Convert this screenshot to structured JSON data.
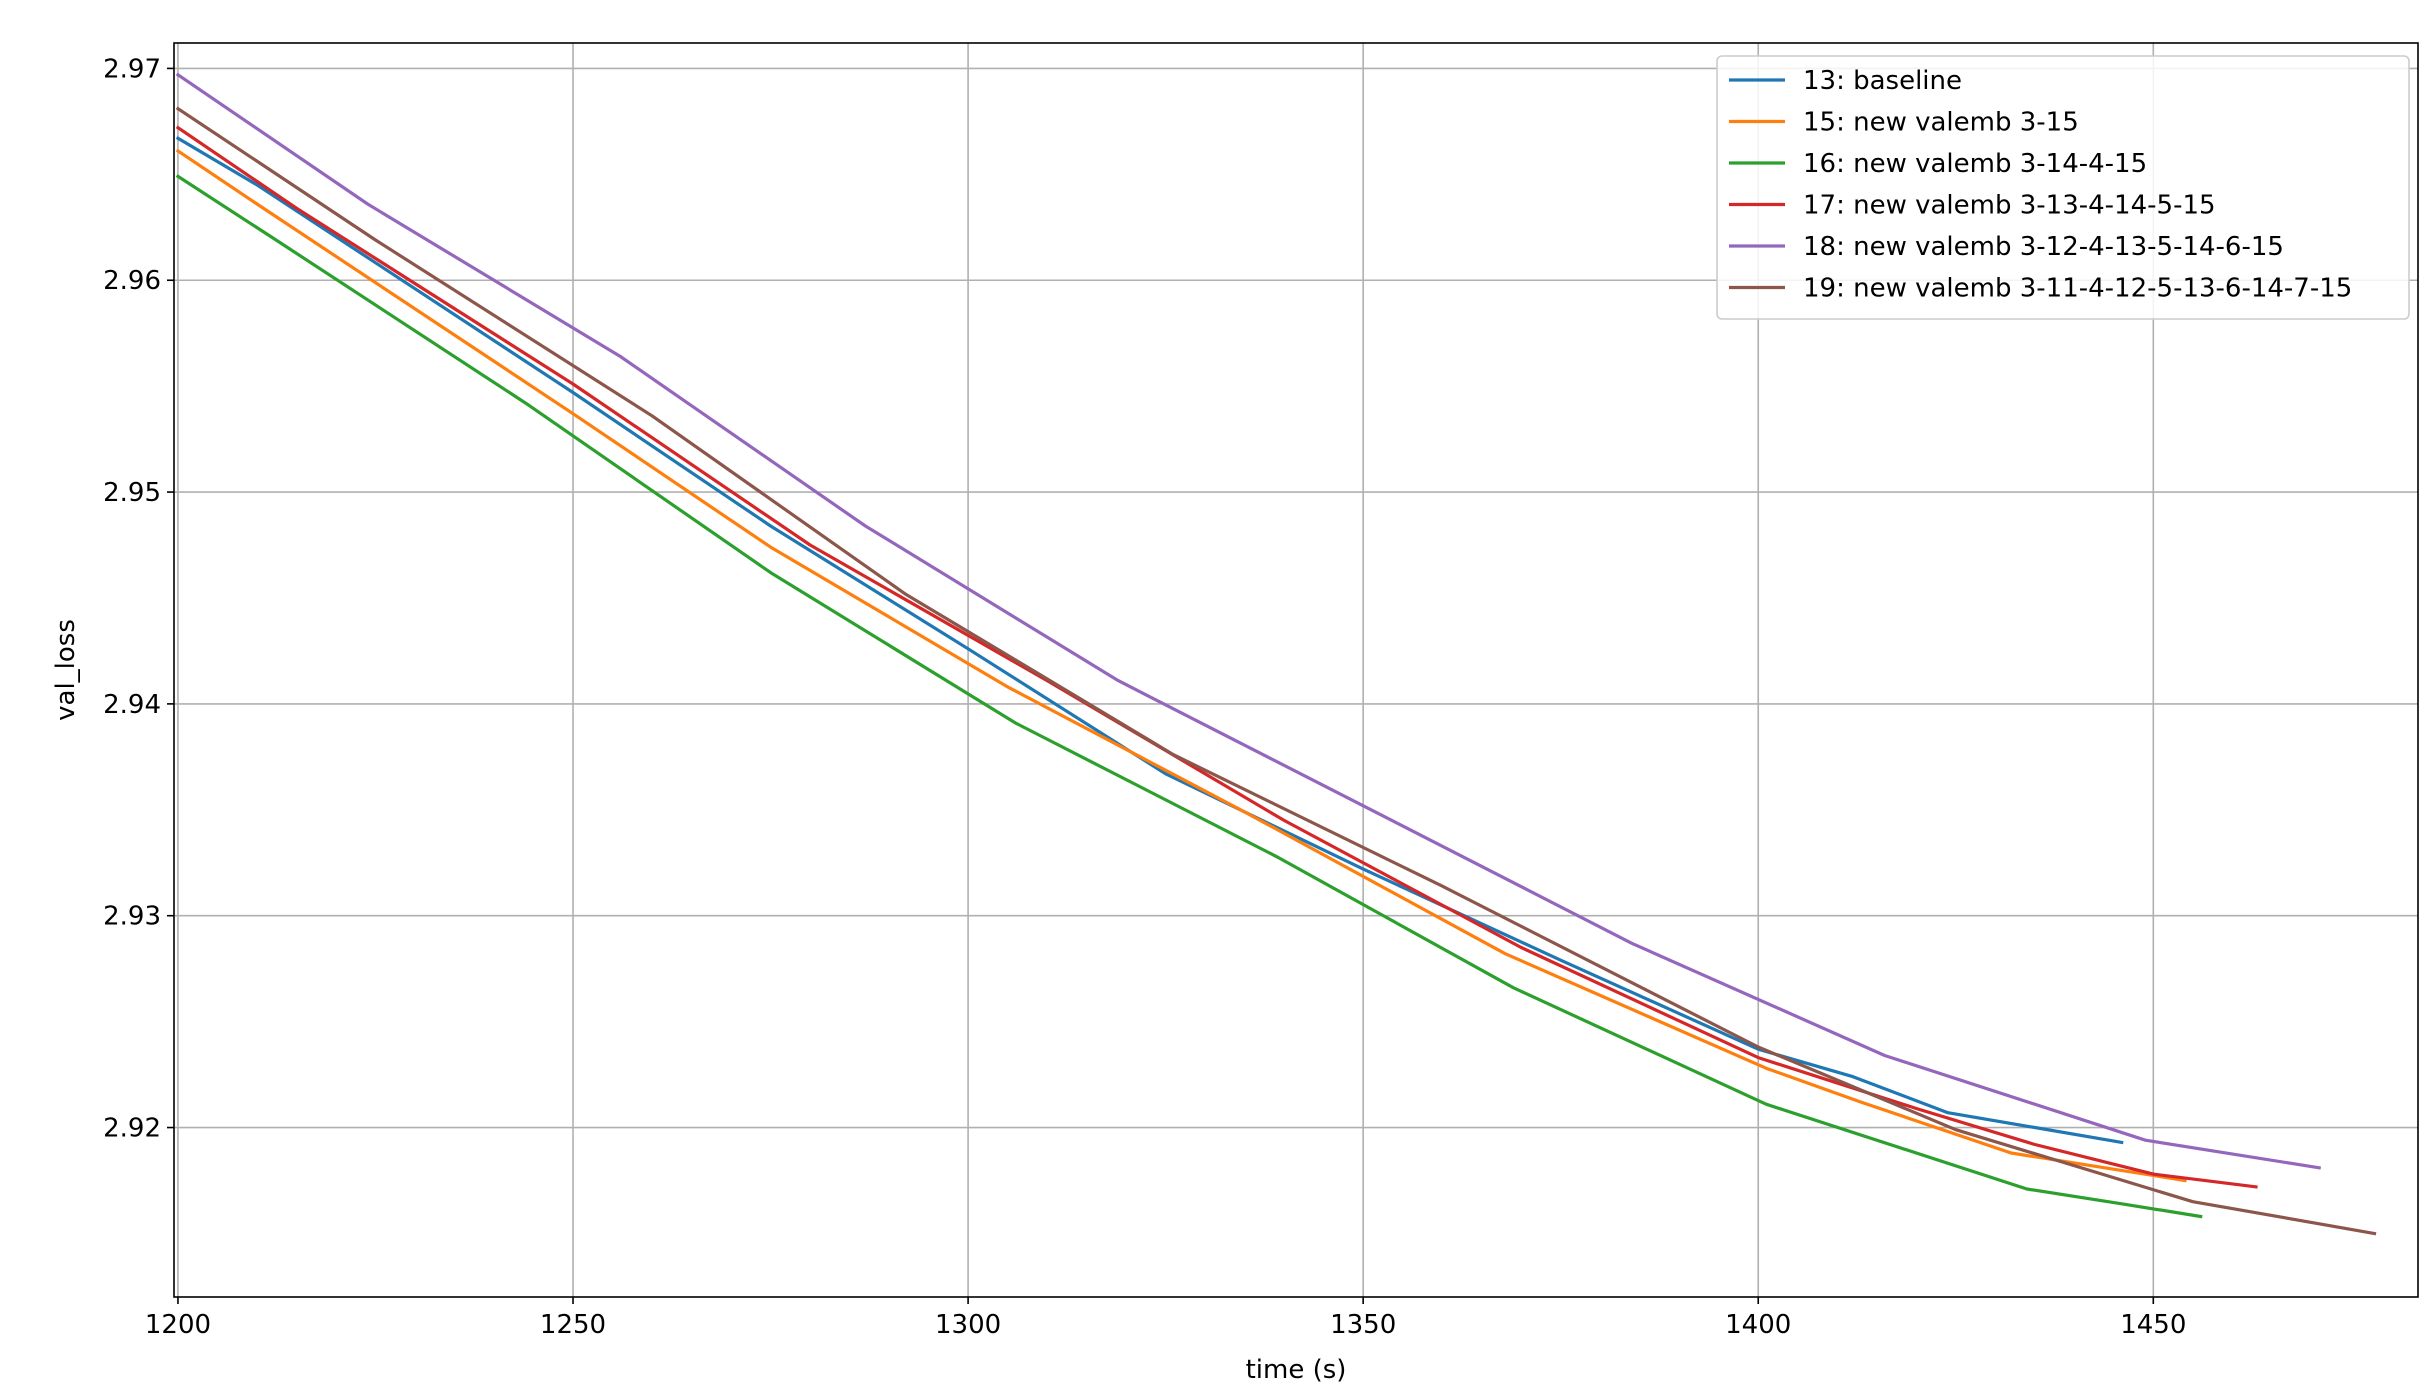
{
  "chart_data": {
    "type": "line",
    "title": "",
    "xlabel": "time (s)",
    "ylabel": "val_loss",
    "xlim": [
      1199.5,
      1483.5
    ],
    "ylim": [
      2.912,
      2.9712
    ],
    "xticks": [
      1200,
      1250,
      1300,
      1350,
      1400,
      1450
    ],
    "yticks": [
      2.92,
      2.93,
      2.94,
      2.95,
      2.96,
      2.97
    ],
    "grid": true,
    "legend_position": "top-right",
    "series": [
      {
        "name": "13: baseline",
        "color": "#1f77b4",
        "points": [
          [
            1200,
            2.9667
          ],
          [
            1210,
            2.9645
          ],
          [
            1250,
            2.9547
          ],
          [
            1275,
            2.9484
          ],
          [
            1300,
            2.9426
          ],
          [
            1325,
            2.9367
          ],
          [
            1350,
            2.9322
          ],
          [
            1375,
            2.9279
          ],
          [
            1400,
            2.9237
          ],
          [
            1412,
            2.9224
          ],
          [
            1424,
            2.9207
          ],
          [
            1435,
            2.92
          ],
          [
            1446,
            2.9193
          ]
        ]
      },
      {
        "name": "15: new valemb 3-15",
        "color": "#ff7f0e",
        "points": [
          [
            1200,
            2.9661
          ],
          [
            1210,
            2.9636
          ],
          [
            1250,
            2.9537
          ],
          [
            1275,
            2.9474
          ],
          [
            1305,
            2.9408
          ],
          [
            1335,
            2.9349
          ],
          [
            1368,
            2.9282
          ],
          [
            1401,
            2.9228
          ],
          [
            1413,
            2.9212
          ],
          [
            1432,
            2.9188
          ],
          [
            1454,
            2.9175
          ]
        ]
      },
      {
        "name": "16: new valemb 3-14-4-15",
        "color": "#2ca02c",
        "points": [
          [
            1200,
            2.9649
          ],
          [
            1212,
            2.962
          ],
          [
            1244,
            2.9542
          ],
          [
            1275,
            2.9462
          ],
          [
            1306,
            2.9391
          ],
          [
            1339,
            2.9328
          ],
          [
            1369,
            2.9266
          ],
          [
            1401,
            2.9211
          ],
          [
            1434,
            2.9171
          ],
          [
            1446,
            2.9164
          ],
          [
            1456,
            2.9158
          ]
        ]
      },
      {
        "name": "17: new valemb 3-13-4-14-5-15",
        "color": "#d62728",
        "points": [
          [
            1200,
            2.9672
          ],
          [
            1215,
            2.9634
          ],
          [
            1250,
            2.9551
          ],
          [
            1280,
            2.9475
          ],
          [
            1310,
            2.9411
          ],
          [
            1340,
            2.9345
          ],
          [
            1370,
            2.9285
          ],
          [
            1400,
            2.9233
          ],
          [
            1420,
            2.9209
          ],
          [
            1435,
            2.9192
          ],
          [
            1450,
            2.9178
          ],
          [
            1463,
            2.9172
          ]
        ]
      },
      {
        "name": "18: new valemb 3-12-4-13-5-14-6-15",
        "color": "#9467bd",
        "points": [
          [
            1200,
            2.9697
          ],
          [
            1224,
            2.9636
          ],
          [
            1256,
            2.9564
          ],
          [
            1287,
            2.9484
          ],
          [
            1319,
            2.9411
          ],
          [
            1351,
            2.935
          ],
          [
            1384,
            2.9287
          ],
          [
            1416,
            2.9234
          ],
          [
            1449,
            2.9194
          ],
          [
            1471,
            2.9181
          ]
        ]
      },
      {
        "name": "19: new valemb 3-11-4-12-5-13-6-14-7-15",
        "color": "#8c564b",
        "points": [
          [
            1200,
            2.9681
          ],
          [
            1225,
            2.9619
          ],
          [
            1260,
            2.9536
          ],
          [
            1292,
            2.9452
          ],
          [
            1326,
            2.9376
          ],
          [
            1360,
            2.9314
          ],
          [
            1400,
            2.9238
          ],
          [
            1425,
            2.9199
          ],
          [
            1455,
            2.9165
          ],
          [
            1478,
            2.915
          ]
        ]
      }
    ]
  }
}
